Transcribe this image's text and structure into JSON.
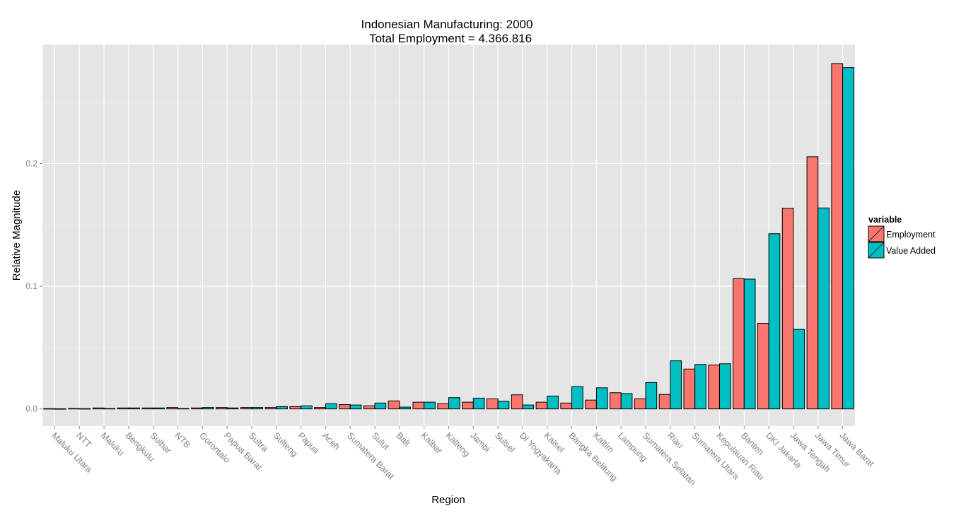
{
  "chart_data": {
    "type": "bar",
    "title": "Indonesian Manufacturing: 2000",
    "subtitle": "Total Employment = 4.366.816",
    "xlabel": "Region",
    "ylabel": "Relative Magnitude",
    "ylim": [
      -0.014,
      0.297
    ],
    "yticks": [
      "0.0",
      "0.1",
      "0.2"
    ],
    "grid": true,
    "legend": {
      "title": "variable",
      "position": "right"
    },
    "categories": [
      "Maluku Utara",
      "NTT",
      "Maluku",
      "Bengkulu",
      "Sulbar",
      "NTB",
      "Gorontalo",
      "Papua Barat",
      "Sultra",
      "Sulteng",
      "Papua",
      "Aceh",
      "Sumatera Barat",
      "Sulut",
      "Bali",
      "Kalbar",
      "Kalteng",
      "Jambi",
      "Sulsel",
      "DI Yogyakarta",
      "Kalsel",
      "Bangka Belitung",
      "Kaltim",
      "Lampung",
      "Sumatera Selatan",
      "Riau",
      "Sumatera Utara",
      "Kepulauan Riau",
      "Banten",
      "DKI Jakarta",
      "Jawa Tengah",
      "Jawa Timur",
      "Jawa Barat"
    ],
    "series": [
      {
        "name": "Employment",
        "color": "#F8766D",
        "values": [
          0.0002,
          0.0003,
          0.0008,
          0.0008,
          0.0008,
          0.0012,
          0.0008,
          0.0012,
          0.0012,
          0.0012,
          0.0019,
          0.0012,
          0.0035,
          0.0025,
          0.0065,
          0.0055,
          0.0042,
          0.0055,
          0.0082,
          0.0115,
          0.0055,
          0.0048,
          0.0072,
          0.0132,
          0.0082,
          0.0118,
          0.0325,
          0.0358,
          0.1062,
          0.0698,
          0.1635,
          0.2055,
          0.2815
        ]
      },
      {
        "name": "Value Added",
        "color": "#00BFC4",
        "values": [
          0.0001,
          0.0002,
          0.0003,
          0.0008,
          0.0008,
          0.0003,
          0.0012,
          0.0008,
          0.0012,
          0.0019,
          0.0025,
          0.0042,
          0.0032,
          0.0048,
          0.0015,
          0.0055,
          0.0092,
          0.0088,
          0.0062,
          0.0032,
          0.0105,
          0.0182,
          0.0172,
          0.0125,
          0.0215,
          0.0392,
          0.0362,
          0.0368,
          0.1058,
          0.1428,
          0.0648,
          0.1638,
          0.2782
        ]
      }
    ]
  }
}
